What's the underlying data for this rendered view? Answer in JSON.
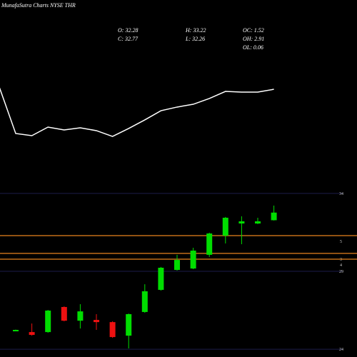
{
  "chart_data": {
    "type": "candlestick",
    "title": "MunafaSutra Charts NYSE THR",
    "ohlc_labels": [
      "O: 32.28",
      "H: 33.22",
      "C: 32.77",
      "L: 32.26",
      "OC: 1.52",
      "OH: 2.91",
      "OL: 0.06"
    ],
    "line": {
      "color": "#ffffff",
      "ylim": [
        0,
        100
      ],
      "values": [
        84.7,
        42,
        40,
        48,
        45.3,
        47.3,
        44.7,
        39.3,
        46.7,
        54.7,
        63.3,
        66.7,
        69.3,
        74.7,
        81.3,
        80.7,
        80.7,
        83.3
      ]
    },
    "candles": {
      "up_color": "#00dd00",
      "down_color": "#ee1111",
      "open": [
        25.17,
        25.1,
        25.1,
        26.71,
        25.83,
        25.88,
        25.74,
        24.87,
        26.39,
        27.81,
        29.09,
        29.18,
        30.06,
        31.29,
        32.07,
        32.07,
        32.28
      ],
      "high": [
        25.26,
        25.65,
        26.52,
        26.75,
        26.89,
        26.25,
        25.79,
        26.29,
        28.17,
        29.28,
        30.06,
        30.51,
        31.48,
        32.49,
        32.53,
        32.44,
        33.22
      ],
      "low": [
        25.15,
        24.87,
        25.06,
        25.79,
        25.33,
        25.24,
        24.73,
        24.05,
        26.34,
        27.76,
        29.05,
        29.14,
        29.92,
        30.79,
        30.74,
        32.03,
        32.26
      ],
      "close": [
        25.24,
        24.92,
        26.48,
        25.83,
        26.43,
        25.74,
        24.78,
        26.25,
        27.72,
        29.23,
        29.73,
        30.33,
        31.43,
        32.44,
        32.21,
        32.21,
        32.77
      ]
    },
    "ylim": [
      23.5,
      34.5
    ],
    "yticks": [
      34,
      29,
      24
    ],
    "grid_color": "#1c1c4a",
    "levels": {
      "color": "#e8821e",
      "values": [
        {
          "value": 31.29,
          "label": "5"
        },
        {
          "value": 30.15,
          "label": "3"
        },
        {
          "value": 29.78,
          "label": "4"
        }
      ]
    }
  }
}
